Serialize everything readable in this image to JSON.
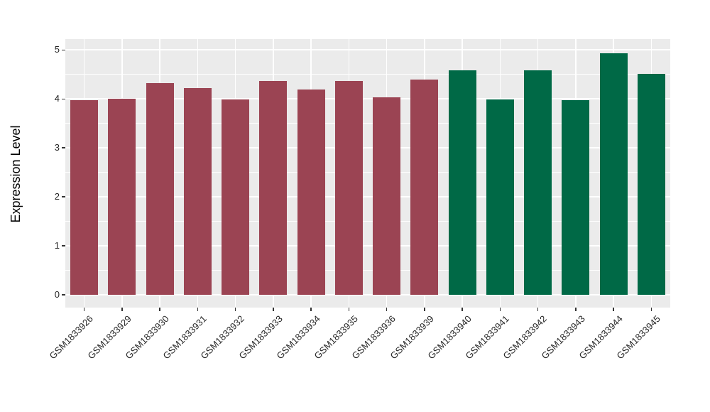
{
  "figure": {
    "background_color": "#FFFFFF",
    "panel_color": "#EBEBEB",
    "gridline_color": "#FFFFFF",
    "tick_mark_color": "#333333",
    "axis_text_color": "#262626",
    "axis_title_color": "#000000"
  },
  "chart_data": {
    "type": "bar",
    "title": "",
    "xlabel": "",
    "ylabel": "Expression Level",
    "ylim": [
      0,
      5
    ],
    "yticks": [
      0,
      1,
      2,
      3,
      4,
      5
    ],
    "y_minor_gridlines": [
      0.5,
      1.5,
      2.5,
      3.5,
      4.5
    ],
    "grid": "white major and minor gridlines on gray panel, vertical gridline at each bar center",
    "legend_position": "none",
    "x_tick_rotation_deg": 45,
    "categories": [
      "GSM1833926",
      "GSM1833929",
      "GSM1833930",
      "GSM1833931",
      "GSM1833932",
      "GSM1833933",
      "GSM1833934",
      "GSM1833935",
      "GSM1833936",
      "GSM1833939",
      "GSM1833940",
      "GSM1833941",
      "GSM1833942",
      "GSM1833943",
      "GSM1833944",
      "GSM1833945"
    ],
    "values": [
      3.97,
      4.01,
      4.32,
      4.22,
      3.99,
      4.37,
      4.19,
      4.37,
      4.03,
      4.4,
      4.58,
      3.99,
      4.58,
      3.97,
      4.94,
      4.52
    ],
    "bar_colors": [
      "#9B4453",
      "#9B4453",
      "#9B4453",
      "#9B4453",
      "#9B4453",
      "#9B4453",
      "#9B4453",
      "#9B4453",
      "#9B4453",
      "#9B4453",
      "#006946",
      "#006946",
      "#006946",
      "#006946",
      "#006946",
      "#006946"
    ]
  }
}
